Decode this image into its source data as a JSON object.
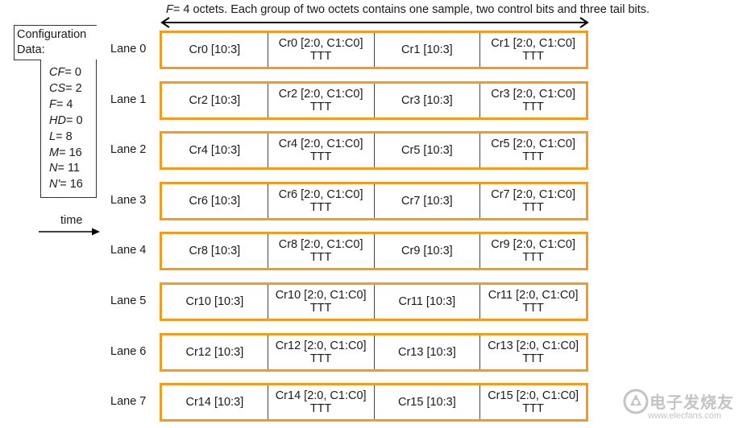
{
  "caption": {
    "var": "F",
    "text": "= 4 octets. Each group of two octets contains one sample, two control bits and three tail bits."
  },
  "config": {
    "header_line1": "Configuration",
    "header_line2": "Data:",
    "params": [
      {
        "key": "CF",
        "value": "= 0"
      },
      {
        "key": "CS",
        "value": "= 2"
      },
      {
        "key": "F",
        "value": "= 4"
      },
      {
        "key": "HD",
        "value": "= 0"
      },
      {
        "key": "L",
        "value": "= 8"
      },
      {
        "key": "M",
        "value": "= 16"
      },
      {
        "key": "N",
        "value": "= 11"
      },
      {
        "key": "N'",
        "value": "= 16"
      }
    ]
  },
  "time_label": "time",
  "lanes": [
    {
      "label": "Lane 0",
      "cells": [
        {
          "l1": "Cr0 [10:3]"
        },
        {
          "l1": "Cr0 [2:0, C1:C0]",
          "l2": "TTT"
        },
        {
          "l1": "Cr1 [10:3]"
        },
        {
          "l1": "Cr1 [2:0, C1:C0]",
          "l2": "TTT"
        }
      ]
    },
    {
      "label": "Lane 1",
      "cells": [
        {
          "l1": "Cr2 [10:3]"
        },
        {
          "l1": "Cr2 [2:0, C1:C0]",
          "l2": "TTT"
        },
        {
          "l1": "Cr3 [10:3]"
        },
        {
          "l1": "Cr3 [2:0, C1:C0]",
          "l2": "TTT"
        }
      ]
    },
    {
      "label": "Lane 2",
      "cells": [
        {
          "l1": "Cr4 [10:3]"
        },
        {
          "l1": "Cr4 [2:0, C1:C0]",
          "l2": "TTT"
        },
        {
          "l1": "Cr5 [10:3]"
        },
        {
          "l1": "Cr5 [2:0, C1:C0]",
          "l2": "TTT"
        }
      ]
    },
    {
      "label": "Lane 3",
      "cells": [
        {
          "l1": "Cr6 [10:3]"
        },
        {
          "l1": "Cr6 [2:0, C1:C0]",
          "l2": "TTT"
        },
        {
          "l1": "Cr7 [10:3]"
        },
        {
          "l1": "Cr7 [2:0, C1:C0]",
          "l2": "TTT"
        }
      ]
    },
    {
      "label": "Lane 4",
      "cells": [
        {
          "l1": "Cr8 [10:3]"
        },
        {
          "l1": "Cr8 [2:0, C1:C0]",
          "l2": "TTT"
        },
        {
          "l1": "Cr9 [10:3]"
        },
        {
          "l1": "Cr9 [2:0, C1:C0]",
          "l2": "TTT"
        }
      ]
    },
    {
      "label": "Lane 5",
      "cells": [
        {
          "l1": "Cr10 [10:3]"
        },
        {
          "l1": "Cr10 [2:0, C1:C0]",
          "l2": "TTT"
        },
        {
          "l1": "Cr11 [10:3]"
        },
        {
          "l1": "Cr11 [2:0, C1:C0]",
          "l2": "TTT"
        }
      ]
    },
    {
      "label": "Lane 6",
      "cells": [
        {
          "l1": "Cr12 [10:3]"
        },
        {
          "l1": "Cr12 [2:0, C1:C0]",
          "l2": "TTT"
        },
        {
          "l1": "Cr13 [10:3]"
        },
        {
          "l1": "Cr13 [2:0, C1:C0]",
          "l2": "TTT"
        }
      ]
    },
    {
      "label": "Lane 7",
      "cells": [
        {
          "l1": "Cr14 [10:3]"
        },
        {
          "l1": "Cr14 [2:0, C1:C0]",
          "l2": "TTT"
        },
        {
          "l1": "Cr15 [10:3]"
        },
        {
          "l1": "Cr15 [2:0, C1:C0]",
          "l2": "TTT"
        }
      ]
    }
  ],
  "colors": {
    "lane_border": "#f39b1d"
  },
  "watermark": {
    "cn_text": "电子发烧友",
    "url": "www.elecfans.com",
    "icon": "elecfans-logo-icon"
  }
}
